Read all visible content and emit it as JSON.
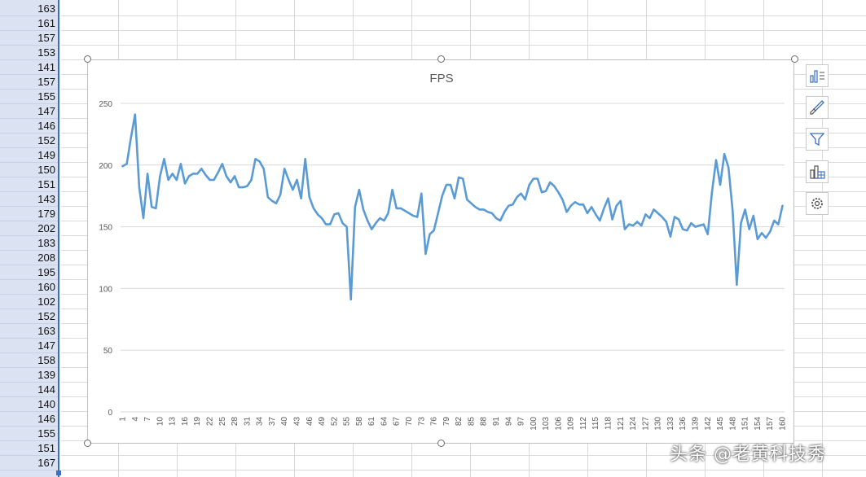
{
  "column_a_values": [
    "163",
    "161",
    "157",
    "153",
    "141",
    "157",
    "155",
    "147",
    "146",
    "152",
    "149",
    "150",
    "151",
    "143",
    "179",
    "202",
    "183",
    "208",
    "195",
    "160",
    "102",
    "152",
    "163",
    "147",
    "158",
    "139",
    "144",
    "140",
    "146",
    "155",
    "151",
    "167"
  ],
  "chart_data": {
    "type": "line",
    "title": "FPS",
    "xlabel": "",
    "ylabel": "",
    "ylim": [
      0,
      250
    ],
    "yticks": [
      0,
      50,
      100,
      150,
      200,
      250
    ],
    "x_tick_labels": [
      "1",
      "4",
      "7",
      "10",
      "13",
      "16",
      "19",
      "22",
      "25",
      "28",
      "31",
      "34",
      "37",
      "40",
      "43",
      "46",
      "49",
      "52",
      "55",
      "58",
      "61",
      "64",
      "67",
      "70",
      "73",
      "76",
      "79",
      "82",
      "85",
      "88",
      "91",
      "94",
      "97",
      "100",
      "103",
      "106",
      "109",
      "112",
      "115",
      "118",
      "121",
      "124",
      "127",
      "130",
      "133",
      "136",
      "139",
      "142",
      "145",
      "148",
      "151",
      "154",
      "157",
      "160"
    ],
    "grid": true,
    "legend": "none",
    "color": "#5b9bd5",
    "series": [
      {
        "values": [
          199,
          201,
          222,
          241,
          182,
          157,
          193,
          166,
          165,
          191,
          205,
          188,
          193,
          188,
          201,
          185,
          191,
          193,
          193,
          197,
          192,
          188,
          188,
          194,
          201,
          191,
          186,
          191,
          182,
          182,
          183,
          188,
          205,
          203,
          197,
          174,
          171,
          169,
          176,
          197,
          188,
          180,
          188,
          173,
          205,
          174,
          165,
          160,
          157,
          152,
          152,
          160,
          161,
          153,
          150,
          91,
          166,
          180,
          164,
          155,
          148,
          153,
          157,
          155,
          161,
          180,
          165,
          165,
          163,
          161,
          159,
          158,
          177,
          128,
          144,
          147,
          161,
          175,
          184,
          184,
          173,
          190,
          189,
          172,
          169,
          166,
          164,
          164,
          162,
          161,
          157,
          155,
          162,
          167,
          168,
          174,
          177,
          172,
          184,
          189,
          189,
          178,
          179,
          186,
          183,
          178,
          172,
          162,
          167,
          170,
          168,
          168,
          161,
          166,
          160,
          155,
          165,
          173,
          156,
          167,
          171,
          148,
          152,
          151,
          154,
          151,
          160,
          157,
          164,
          161,
          158,
          154,
          142,
          158,
          156,
          148,
          147,
          153,
          150,
          151,
          152,
          144,
          178,
          204,
          184,
          209,
          198,
          163,
          103,
          153,
          164,
          148,
          159,
          140,
          145,
          141,
          146,
          155,
          152,
          167
        ]
      }
    ]
  },
  "side_buttons": [
    {
      "icon": "chart-elements-icon"
    },
    {
      "icon": "chart-styles-brush-icon"
    },
    {
      "icon": "chart-filters-funnel-icon"
    },
    {
      "icon": "chart-layout-icon"
    },
    {
      "icon": "settings-gear-icon"
    }
  ],
  "watermark": "头条 @老黄科技秀"
}
